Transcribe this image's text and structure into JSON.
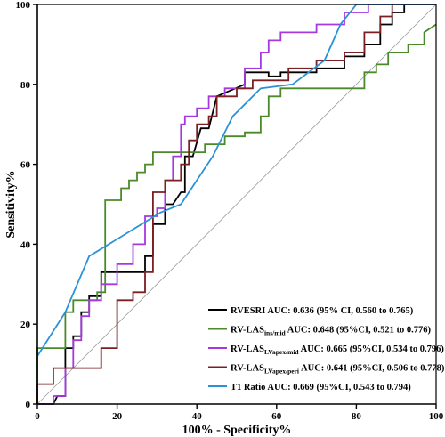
{
  "chart_data": {
    "type": "line",
    "xlabel": "100% - Specificity%",
    "ylabel": "Sensitivity%",
    "xlim": [
      0,
      100
    ],
    "ylim": [
      0,
      100
    ],
    "xticks": [
      "0",
      "20",
      "40",
      "60",
      "80",
      "100"
    ],
    "yticks": [
      "0",
      "20",
      "40",
      "60",
      "80",
      "100"
    ],
    "legend_position": "bottom-right",
    "reference_line": {
      "x": [
        0,
        100
      ],
      "y": [
        0,
        100
      ],
      "color": "#9a9a9a"
    },
    "series": [
      {
        "name": "RVESRI AUC: 0.636 (95% CI, 0.560 to 0.765)",
        "legend": {
          "main": "RVESRI AUC: 0.636 (95% CI, 0.560 to 0.765)",
          "sub": "",
          "tail": ""
        },
        "color": "#000000",
        "x": [
          0,
          4,
          5,
          7,
          7,
          9,
          9,
          11,
          11,
          13,
          13,
          16,
          16,
          27,
          27,
          29,
          29,
          32,
          32,
          34,
          36,
          37,
          37,
          39,
          41,
          43,
          45,
          52,
          52,
          58,
          58,
          61,
          61,
          70,
          70,
          77,
          77,
          82,
          82,
          86,
          86,
          89,
          89,
          92,
          92,
          100
        ],
        "y": [
          0,
          0,
          2,
          2,
          14,
          14,
          17,
          17,
          23,
          23,
          27,
          27,
          33,
          33,
          37,
          37,
          45,
          45,
          50,
          50,
          53,
          53,
          62,
          62,
          69,
          69,
          77,
          80,
          83,
          83,
          82,
          82,
          83,
          83,
          84,
          84,
          87,
          87,
          90,
          90,
          95,
          95,
          98,
          98,
          100,
          100
        ]
      },
      {
        "name": "RV-LASins/mid AUC: 0.648 (95%CI, 0.521 to 0.776)",
        "legend": {
          "main": "RV-LAS",
          "sub": "ins/mid",
          "tail": " AUC: 0.648 (95%CI, 0.521 to 0.776)"
        },
        "color": "#4a8a2a",
        "x": [
          0,
          0,
          7,
          7,
          9,
          9,
          15,
          15,
          17,
          17,
          21,
          21,
          23,
          23,
          25,
          25,
          27,
          27,
          29,
          29,
          30,
          30,
          42,
          42,
          47,
          47,
          52,
          52,
          56,
          56,
          58,
          58,
          61,
          61,
          82,
          82,
          85,
          85,
          88,
          88,
          91,
          91,
          93,
          93,
          97,
          97,
          100
        ],
        "y": [
          0,
          14,
          14,
          23,
          23,
          26,
          26,
          28,
          28,
          51,
          51,
          54,
          54,
          56,
          56,
          58,
          58,
          60,
          60,
          63,
          63,
          63,
          63,
          65,
          65,
          67,
          67,
          68,
          68,
          72,
          72,
          77,
          77,
          79,
          79,
          83,
          83,
          85,
          85,
          88,
          88,
          88,
          88,
          90,
          90,
          93,
          95
        ]
      },
      {
        "name": "RV-LASLVapex/mid AUC: 0.665 (95%CI, 0.534 to 0.796)",
        "legend": {
          "main": "RV-LAS",
          "sub": "LVapex/mid",
          "tail": " AUC: 0.665 (95%CI, 0.534 to 0.796)"
        },
        "color": "#a638e0",
        "x": [
          0,
          4,
          4,
          7,
          7,
          9,
          9,
          11,
          11,
          13,
          13,
          16,
          16,
          20,
          20,
          24,
          24,
          27,
          27,
          30,
          30,
          32,
          32,
          34,
          34,
          36,
          36,
          37,
          37,
          40,
          40,
          43,
          43,
          47,
          47,
          52,
          52,
          56,
          56,
          58,
          58,
          61,
          61,
          70,
          70,
          77,
          77,
          83,
          83,
          86,
          86,
          100
        ],
        "y": [
          0,
          0,
          2,
          2,
          9,
          9,
          16,
          16,
          22,
          22,
          26,
          26,
          30,
          30,
          35,
          35,
          40,
          40,
          47,
          47,
          49,
          49,
          56,
          56,
          62,
          62,
          70,
          70,
          72,
          72,
          74,
          74,
          77,
          77,
          79,
          79,
          84,
          84,
          88,
          88,
          91,
          91,
          93,
          93,
          95,
          95,
          98,
          98,
          100,
          100,
          100,
          100
        ]
      },
      {
        "name": "RV-LASLVapex/peri AUC: 0.641 (95%CI, 0.506 to 0.778)",
        "legend": {
          "main": "RV-LAS",
          "sub": "LVapex/peri",
          "tail": " AUC: 0.641 (95%CI, 0.506 to 0.778)"
        },
        "color": "#7a1f22",
        "x": [
          0,
          0,
          4,
          4,
          7,
          7,
          16,
          16,
          20,
          20,
          24,
          24,
          27,
          27,
          29,
          29,
          32,
          32,
          36,
          36,
          38,
          38,
          40,
          40,
          43,
          43,
          45,
          45,
          50,
          50,
          54,
          54,
          63,
          63,
          70,
          70,
          77,
          77,
          82,
          82,
          86,
          86,
          89,
          89,
          100
        ],
        "y": [
          0,
          5,
          5,
          9,
          9,
          9,
          9,
          14,
          14,
          26,
          26,
          28,
          28,
          33,
          33,
          53,
          53,
          56,
          56,
          60,
          60,
          66,
          66,
          70,
          70,
          72,
          72,
          77,
          77,
          79,
          79,
          81,
          81,
          84,
          84,
          86,
          86,
          88,
          88,
          93,
          93,
          97,
          97,
          100,
          100
        ]
      },
      {
        "name": "T1 Ratio AUC: 0.669 (95%CI, 0.543 to 0.794)",
        "legend": {
          "main": "T1 Ratio AUC: 0.669 (95%CI, 0.543 to 0.794)",
          "sub": "",
          "tail": ""
        },
        "color": "#2a92d8",
        "x": [
          0,
          7,
          13,
          31,
          36,
          44,
          49,
          52,
          56,
          64,
          72,
          76,
          80,
          87,
          100
        ],
        "y": [
          12,
          23,
          37,
          48,
          50,
          62,
          72,
          75,
          79,
          80,
          86,
          95,
          100,
          100,
          100
        ]
      }
    ]
  }
}
